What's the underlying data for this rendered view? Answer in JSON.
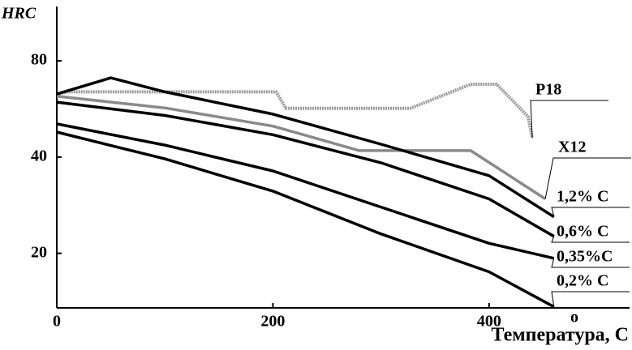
{
  "chart_data": {
    "type": "line",
    "y_label": "HRC",
    "x_label": "Температура, С",
    "x_label_degree": "o",
    "xlim": [
      0,
      530
    ],
    "xticks": [
      0,
      200,
      400
    ],
    "ylim": [
      13.5,
      117
    ],
    "yticks": [
      20,
      40,
      80
    ],
    "log_y": true,
    "series": [
      {
        "name": "Р18",
        "color": "#9a9a9a",
        "dashed": true,
        "x": [
          0,
          10,
          203,
          212,
          327,
          383,
          407,
          436,
          440
        ],
        "values": [
          63,
          64,
          64,
          56.8,
          56.8,
          67.6,
          67.6,
          53.6,
          45.9
        ]
      },
      {
        "name": "Х12",
        "color": "#8a8a8a",
        "dashed": false,
        "x": [
          0,
          100,
          200,
          280,
          383,
          452
        ],
        "values": [
          62,
          57,
          50,
          41.9,
          41.9,
          29.6
        ]
      },
      {
        "name": "1,2% C",
        "color": "#000000",
        "dashed": false,
        "x": [
          0,
          50,
          100,
          200,
          300,
          400,
          460
        ],
        "values": [
          63,
          70.8,
          64,
          54.5,
          43.9,
          35,
          26
        ]
      },
      {
        "name": "0,6% C",
        "color": "#000000",
        "dashed": false,
        "x": [
          0,
          100,
          200,
          300,
          400,
          460
        ],
        "values": [
          59.4,
          54,
          47,
          38.4,
          29.6,
          22.6
        ]
      },
      {
        "name": "0,35%C",
        "color": "#000000",
        "dashed": false,
        "x": [
          0,
          100,
          200,
          300,
          400,
          460
        ],
        "values": [
          50.8,
          43.6,
          36.2,
          27.9,
          21.5,
          19.3
        ]
      },
      {
        "name": "0,2% C",
        "color": "#000000",
        "dashed": false,
        "x": [
          0,
          100,
          200,
          300,
          400,
          460
        ],
        "values": [
          47.9,
          39.5,
          31.3,
          23,
          17.5,
          13.6
        ]
      }
    ]
  }
}
